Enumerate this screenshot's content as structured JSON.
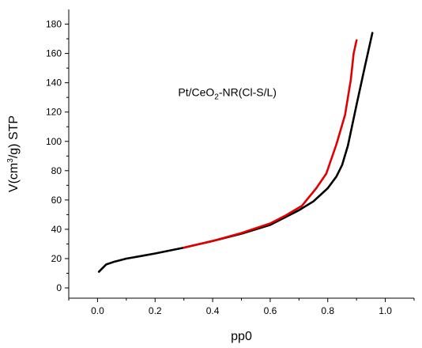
{
  "chart_data": {
    "type": "line",
    "title": "",
    "xlabel": "pp0",
    "ylabel": {
      "pre": "V(cm",
      "sup": "3",
      "post": "/g) STP"
    },
    "xlim": [
      -0.1,
      1.1
    ],
    "ylim": [
      -7,
      190
    ],
    "x_ticks": [
      0.0,
      0.2,
      0.4,
      0.6,
      0.8,
      1.0
    ],
    "x_tick_labels": [
      "0.0",
      "0.2",
      "0.4",
      "0.6",
      "0.8",
      "1.0"
    ],
    "y_ticks": [
      0,
      20,
      40,
      60,
      80,
      100,
      120,
      140,
      160,
      180
    ],
    "y_tick_labels": [
      "0",
      "20",
      "40",
      "60",
      "80",
      "100",
      "120",
      "140",
      "160",
      "180"
    ],
    "grid": false,
    "annotation": {
      "pre": "Pt/CeO",
      "sub": "2",
      "post": "-NR(Cl-S/L)"
    },
    "series": [
      {
        "color": "#000000",
        "x": [
          0.005,
          0.03,
          0.06,
          0.1,
          0.15,
          0.2,
          0.3,
          0.4,
          0.5,
          0.6,
          0.65,
          0.7,
          0.75,
          0.8,
          0.83,
          0.85,
          0.87,
          0.9,
          0.93,
          0.955
        ],
        "y": [
          11,
          16,
          18,
          20,
          21.7,
          23.5,
          27.5,
          32,
          37,
          43,
          48,
          53,
          59,
          68,
          76,
          84,
          97,
          125,
          152,
          174
        ]
      },
      {
        "color": "#e00000",
        "x": [
          0.3,
          0.4,
          0.5,
          0.6,
          0.65,
          0.71,
          0.76,
          0.795,
          0.83,
          0.86,
          0.88,
          0.89,
          0.9
        ],
        "y": [
          27.5,
          32,
          37.5,
          44,
          49,
          56,
          68,
          78,
          98,
          118,
          142,
          160,
          169
        ]
      }
    ]
  }
}
